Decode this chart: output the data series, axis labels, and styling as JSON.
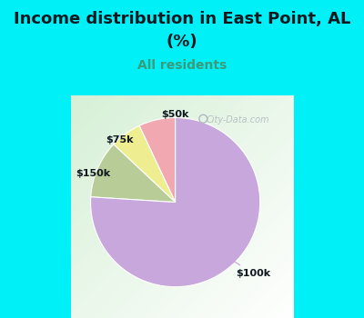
{
  "title_line1": "Income distribution in East Point, AL",
  "title_line2": "(%)",
  "subtitle": "All residents",
  "slices": [
    {
      "label": "$50k",
      "value": 7,
      "color": "#f2a8b0"
    },
    {
      "label": "$75k",
      "value": 6,
      "color": "#eeee90"
    },
    {
      "label": "$150k",
      "value": 11,
      "color": "#b8cc98"
    },
    {
      "label": "$100k",
      "value": 76,
      "color": "#c8a8dc"
    }
  ],
  "background_cyan": "#00f0f8",
  "background_chart_color": "#d8eed8",
  "title_color": "#101820",
  "subtitle_color": "#3a9a7a",
  "label_color": "#101820",
  "watermark": "City-Data.com",
  "start_angle": 90,
  "label_fontsize": 8,
  "title_fontsize": 13,
  "subtitle_fontsize": 10
}
